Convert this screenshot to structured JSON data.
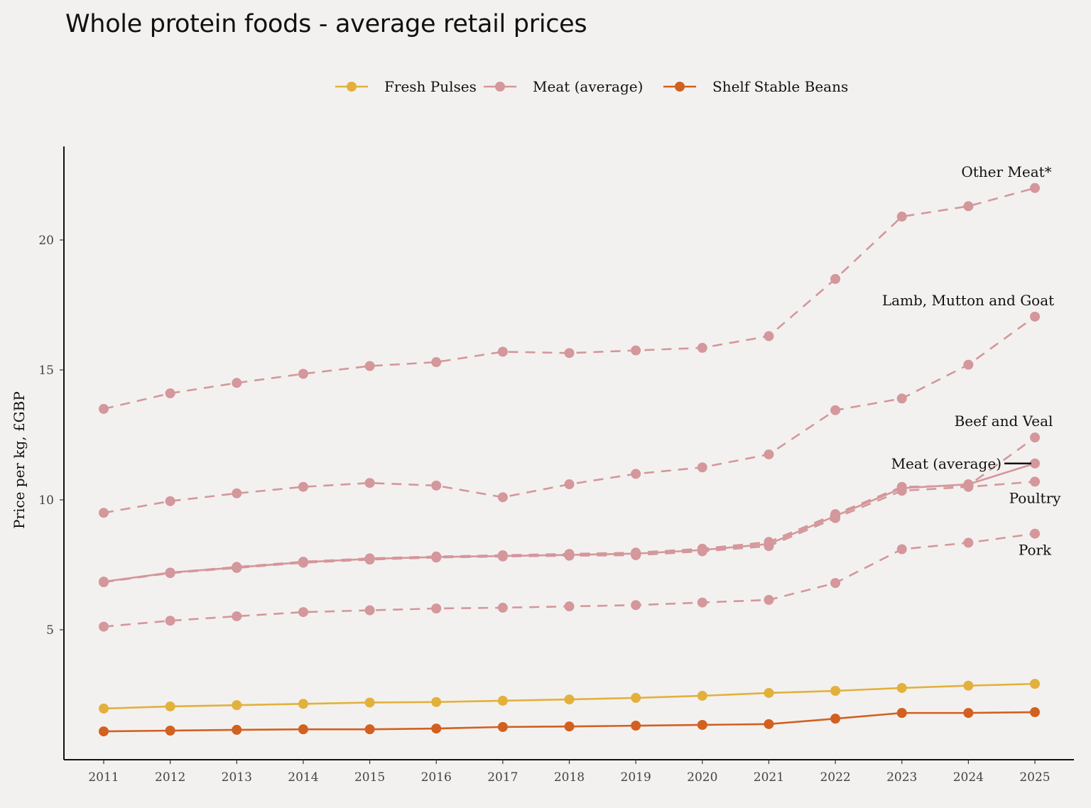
{
  "title": "Whole protein foods - average retail prices",
  "chart_data": {
    "type": "line",
    "title": "Whole protein foods - average retail prices",
    "xlabel": "",
    "ylabel": "Price per kg, £GBP",
    "x": [
      2011,
      2012,
      2013,
      2014,
      2015,
      2016,
      2017,
      2018,
      2019,
      2020,
      2021,
      2022,
      2023,
      2024,
      2025
    ],
    "yticks": [
      5,
      10,
      15,
      20
    ],
    "ylim": [
      0,
      23.6
    ],
    "grid": false,
    "legend_position": "top",
    "legend": [
      "Fresh Pulses",
      "Meat (average)",
      "Shelf Stable Beans"
    ],
    "colors": {
      "Fresh Pulses": "#e2b13c",
      "Meat (average)": "#d4979b",
      "Shelf Stable Beans": "#d2601f"
    },
    "series": [
      {
        "name": "Other Meat*",
        "group": "Meat (average)",
        "style": "dashed",
        "values": [
          13.5,
          14.1,
          14.5,
          14.85,
          15.15,
          15.3,
          15.7,
          15.65,
          15.75,
          15.85,
          16.3,
          18.5,
          20.9,
          21.3,
          22.0
        ]
      },
      {
        "name": "Lamb, Mutton and Goat",
        "group": "Meat (average)",
        "style": "dashed",
        "values": [
          9.5,
          9.95,
          10.25,
          10.5,
          10.65,
          10.55,
          10.1,
          10.6,
          11.0,
          11.25,
          11.75,
          13.45,
          13.9,
          15.2,
          17.05
        ]
      },
      {
        "name": "Beef and Veal",
        "group": "Meat (average)",
        "style": "dashed",
        "values": [
          6.85,
          7.2,
          7.42,
          7.62,
          7.75,
          7.82,
          7.87,
          7.92,
          7.97,
          8.12,
          8.38,
          9.45,
          10.5,
          10.55,
          12.4
        ]
      },
      {
        "name": "Poultry",
        "group": "Meat (average)",
        "style": "dashed",
        "values": [
          6.83,
          7.18,
          7.38,
          7.58,
          7.7,
          7.78,
          7.82,
          7.85,
          7.87,
          8.02,
          8.22,
          9.3,
          10.35,
          10.5,
          10.7
        ]
      },
      {
        "name": "Meat (average)",
        "group": "Meat (average)",
        "style": "solid",
        "values": [
          6.85,
          7.2,
          7.4,
          7.6,
          7.73,
          7.8,
          7.84,
          7.88,
          7.93,
          8.07,
          8.3,
          9.38,
          10.45,
          10.6,
          11.4
        ]
      },
      {
        "name": "Pork",
        "group": "Meat (average)",
        "style": "dashed",
        "values": [
          5.12,
          5.35,
          5.52,
          5.68,
          5.75,
          5.82,
          5.85,
          5.9,
          5.95,
          6.05,
          6.15,
          6.8,
          8.1,
          8.35,
          8.7
        ]
      },
      {
        "name": "Fresh Pulses",
        "group": "Fresh Pulses",
        "style": "solid",
        "values": [
          1.97,
          2.05,
          2.1,
          2.15,
          2.2,
          2.22,
          2.27,
          2.32,
          2.38,
          2.46,
          2.57,
          2.65,
          2.76,
          2.85,
          2.92
        ]
      },
      {
        "name": "Shelf Stable Beans",
        "group": "Shelf Stable Beans",
        "style": "solid",
        "values": [
          1.09,
          1.12,
          1.15,
          1.17,
          1.17,
          1.2,
          1.26,
          1.28,
          1.31,
          1.34,
          1.37,
          1.58,
          1.8,
          1.8,
          1.83
        ]
      }
    ]
  }
}
